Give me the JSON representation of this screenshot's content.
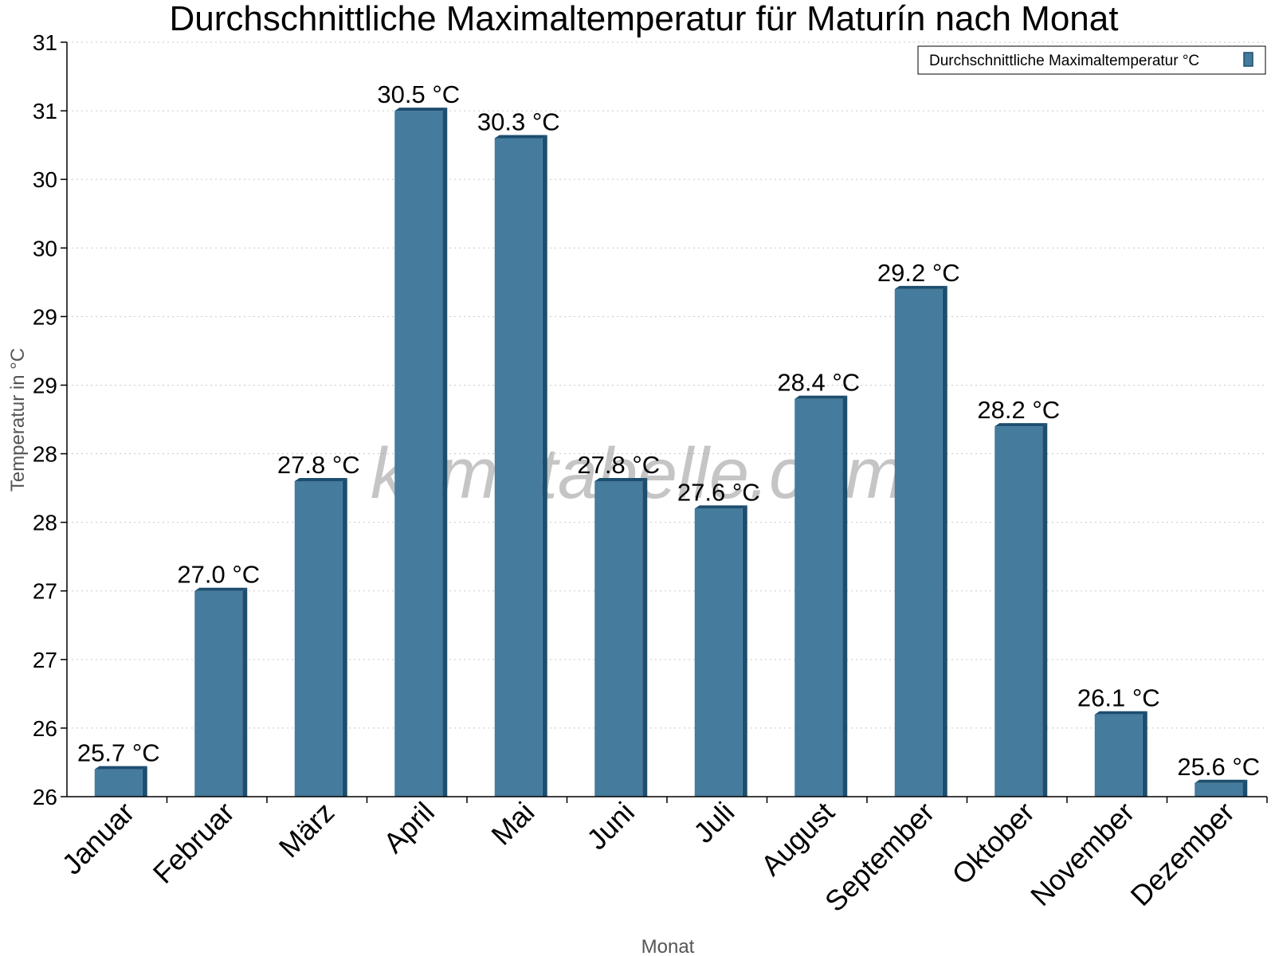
{
  "chart_data": {
    "type": "bar",
    "title": "Durchschnittliche Maximaltemperatur für Maturín nach Monat",
    "xlabel": "Monat",
    "ylabel": "Temperatur in °C",
    "categories": [
      "Januar",
      "Februar",
      "März",
      "April",
      "Mai",
      "Juni",
      "Juli",
      "August",
      "September",
      "Oktober",
      "November",
      "Dezember"
    ],
    "series": [
      {
        "name": "Durchschnittliche Maximaltemperatur °C",
        "values": [
          25.7,
          27.0,
          27.8,
          30.5,
          30.3,
          27.8,
          27.6,
          28.4,
          29.2,
          28.2,
          26.1,
          25.6
        ],
        "value_labels": [
          "25.7 °C",
          "27.0 °C",
          "27.8 °C",
          "30.5 °C",
          "30.3 °C",
          "27.8 °C",
          "27.6 °C",
          "28.4 °C",
          "29.2 °C",
          "28.2 °C",
          "26.1 °C",
          "25.6 °C"
        ],
        "color": "#457b9d",
        "side_color": "#1d4e6f"
      }
    ],
    "ylim": [
      25.5,
      31.0
    ],
    "yticks": [
      25.5,
      26.0,
      26.5,
      27.0,
      27.5,
      28.0,
      28.5,
      29.0,
      29.5,
      30.0,
      30.5,
      31.0
    ],
    "ytick_labels": [
      "26",
      "26",
      "27",
      "27",
      "28",
      "28",
      "29",
      "29",
      "30",
      "30",
      "31",
      "31"
    ],
    "grid": true,
    "legend": "top-right",
    "watermark": "klimatabelle.com"
  }
}
